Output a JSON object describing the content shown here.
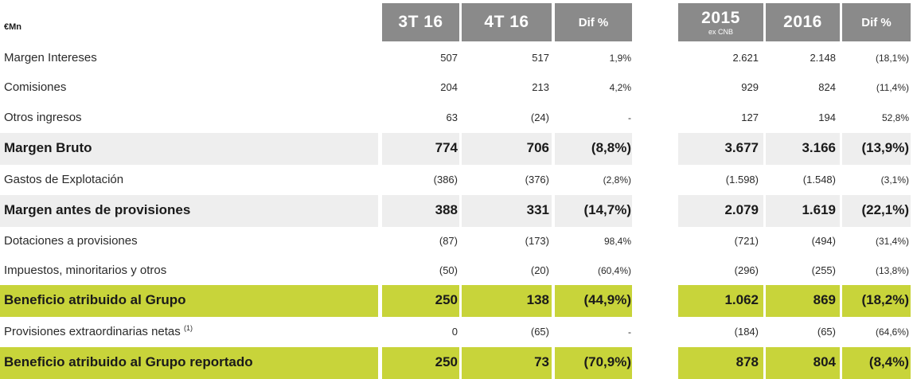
{
  "unit": "€Mn",
  "headers": [
    {
      "main": "3T 16",
      "sub": ""
    },
    {
      "main": "4T 16",
      "sub": ""
    },
    {
      "main": "Dif %",
      "sub": ""
    },
    {
      "main": "2015",
      "sub": "ex CNB"
    },
    {
      "main": "2016",
      "sub": ""
    },
    {
      "main": "Dif %",
      "sub": ""
    }
  ],
  "rows": [
    {
      "label": "Margen Intereses",
      "sup": "",
      "style": "normal",
      "values": [
        "507",
        "517",
        "1,9%",
        "2.621",
        "2.148",
        "(18,1%)"
      ]
    },
    {
      "label": "Comisiones",
      "sup": "",
      "style": "normal",
      "values": [
        "204",
        "213",
        "4,2%",
        "929",
        "824",
        "(11,4%)"
      ]
    },
    {
      "label": "Otros ingresos",
      "sup": "",
      "style": "normal",
      "values": [
        "63",
        "(24)",
        "-",
        "127",
        "194",
        "52,8%"
      ]
    },
    {
      "label": "Margen Bruto",
      "sup": "",
      "style": "grey",
      "values": [
        "774",
        "706",
        "(8,8%)",
        "3.677",
        "3.166",
        "(13,9%)"
      ]
    },
    {
      "label": "Gastos de Explotación",
      "sup": "",
      "style": "normal",
      "values": [
        "(386)",
        "(376)",
        "(2,8%)",
        "(1.598)",
        "(1.548)",
        "(3,1%)"
      ]
    },
    {
      "label": "Margen antes de provisiones",
      "sup": "",
      "style": "grey",
      "values": [
        "388",
        "331",
        "(14,7%)",
        "2.079",
        "1.619",
        "(22,1%)"
      ]
    },
    {
      "label": "Dotaciones a provisiones",
      "sup": "",
      "style": "normal",
      "values": [
        "(87)",
        "(173)",
        "98,4%",
        "(721)",
        "(494)",
        "(31,4%)"
      ]
    },
    {
      "label": "Impuestos, minoritarios y otros",
      "sup": "",
      "style": "normal",
      "values": [
        "(50)",
        "(20)",
        "(60,4%)",
        "(296)",
        "(255)",
        "(13,8%)"
      ]
    },
    {
      "label": "Beneficio atribuido al Grupo",
      "sup": "",
      "style": "green",
      "values": [
        "250",
        "138",
        "(44,9%)",
        "1.062",
        "869",
        "(18,2%)"
      ]
    },
    {
      "label": "Provisiones extraordinarias netas",
      "sup": "(1)",
      "style": "normal",
      "values": [
        "0",
        "(65)",
        "-",
        "(184)",
        "(65)",
        "(64,6%)"
      ]
    },
    {
      "label": "Beneficio atribuido al Grupo reportado",
      "sup": "",
      "style": "green",
      "values": [
        "250",
        "73",
        "(70,9%)",
        "878",
        "804",
        "(8,4%)"
      ]
    }
  ]
}
